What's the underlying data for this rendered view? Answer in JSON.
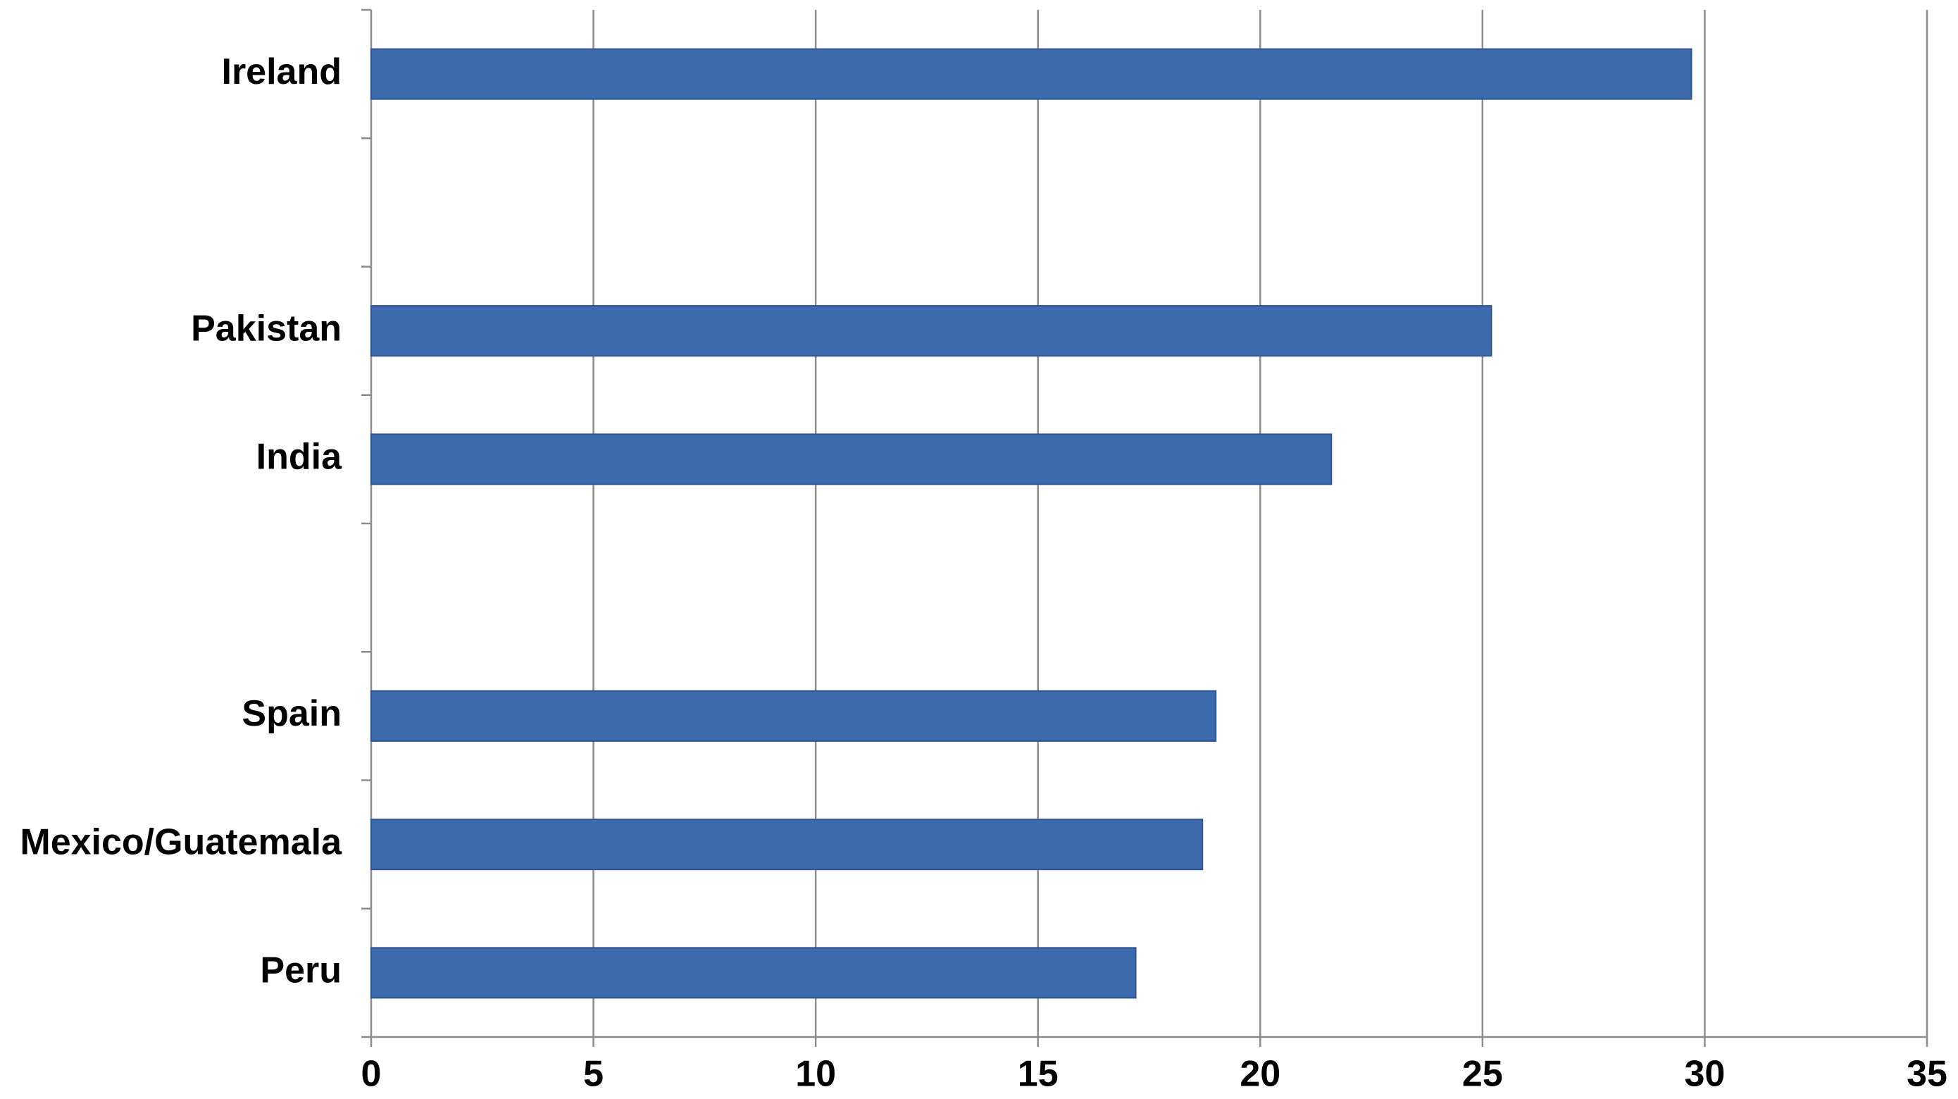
{
  "chart_data": {
    "type": "bar",
    "orientation": "horizontal",
    "categories": [
      "Ireland",
      null,
      "Pakistan",
      "India",
      null,
      "Spain",
      "Mexico/Guatemala",
      "Peru"
    ],
    "values": [
      29.7,
      null,
      25.2,
      21.6,
      null,
      19.0,
      18.7,
      17.2
    ],
    "color": "#3c6aad",
    "xlim": [
      0,
      35
    ],
    "xticks": [
      0,
      5,
      10,
      15,
      20,
      25,
      30,
      35
    ],
    "grid": true
  }
}
